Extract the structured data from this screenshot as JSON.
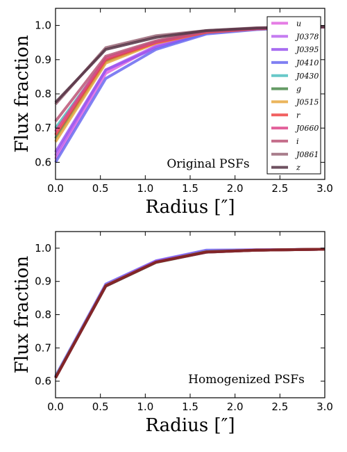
{
  "chart_data": [
    {
      "type": "line",
      "annotation": "Original PSFs",
      "xlabel": "Radius [″]",
      "ylabel": "Flux fraction",
      "xlim": [
        0.0,
        3.0
      ],
      "ylim": [
        0.55,
        1.05
      ],
      "xticks": [
        "0.0",
        "0.5",
        "1.0",
        "1.5",
        "2.0",
        "2.5",
        "3.0"
      ],
      "yticks": [
        "0.6",
        "0.7",
        "0.8",
        "0.9",
        "1.0"
      ],
      "legend_position": "right",
      "x": [
        0.0,
        0.56,
        1.12,
        1.68,
        2.24,
        2.8,
        3.0
      ],
      "series": [
        {
          "name": "u",
          "color": "#e066e0",
          "values": [
            0.61,
            0.86,
            0.94,
            0.98,
            0.99,
            0.995,
            0.995
          ]
        },
        {
          "name": "J0378",
          "color": "#bb66ee",
          "values": [
            0.62,
            0.87,
            0.94,
            0.98,
            0.99,
            0.995,
            0.995
          ]
        },
        {
          "name": "J0395",
          "color": "#9955ee",
          "values": [
            0.63,
            0.87,
            0.935,
            0.978,
            0.99,
            0.995,
            0.995
          ]
        },
        {
          "name": "J0410",
          "color": "#6a6af0",
          "values": [
            0.6,
            0.845,
            0.93,
            0.975,
            0.988,
            0.994,
            0.995
          ]
        },
        {
          "name": "J0430",
          "color": "#4dbfbf",
          "values": [
            0.7,
            0.9,
            0.95,
            0.98,
            0.99,
            0.995,
            0.995
          ]
        },
        {
          "name": "g",
          "color": "#4a8a4a",
          "values": [
            0.67,
            0.895,
            0.95,
            0.98,
            0.99,
            0.995,
            0.995
          ]
        },
        {
          "name": "J0515",
          "color": "#e8a840",
          "values": [
            0.66,
            0.89,
            0.948,
            0.98,
            0.99,
            0.995,
            0.995
          ]
        },
        {
          "name": "r",
          "color": "#ee4444",
          "values": [
            0.68,
            0.9,
            0.95,
            0.98,
            0.99,
            0.995,
            0.995
          ]
        },
        {
          "name": "J0660",
          "color": "#dd4488",
          "values": [
            0.69,
            0.905,
            0.952,
            0.982,
            0.99,
            0.995,
            0.995
          ]
        },
        {
          "name": "i",
          "color": "#bb5577",
          "values": [
            0.72,
            0.91,
            0.955,
            0.983,
            0.992,
            0.995,
            0.995
          ]
        },
        {
          "name": "J0861",
          "color": "#996677",
          "values": [
            0.77,
            0.935,
            0.97,
            0.985,
            0.993,
            0.996,
            0.996
          ]
        },
        {
          "name": "z",
          "color": "#553344",
          "values": [
            0.775,
            0.93,
            0.965,
            0.985,
            0.992,
            0.996,
            0.996
          ]
        }
      ]
    },
    {
      "type": "line",
      "annotation": "Homogenized PSFs",
      "xlabel": "Radius [″]",
      "ylabel": "Flux fraction",
      "xlim": [
        0.0,
        3.0
      ],
      "ylim": [
        0.55,
        1.05
      ],
      "xticks": [
        "0.0",
        "0.5",
        "1.0",
        "1.5",
        "2.0",
        "2.5",
        "3.0"
      ],
      "yticks": [
        "0.6",
        "0.7",
        "0.8",
        "0.9",
        "1.0"
      ],
      "x": [
        0.0,
        0.56,
        1.12,
        1.68,
        2.24,
        2.8,
        3.0
      ],
      "series": [
        {
          "color": "#6a6af0",
          "values": [
            0.615,
            0.892,
            0.962,
            0.994,
            0.995,
            0.996,
            0.997
          ]
        },
        {
          "color": "#9955ee",
          "values": [
            0.613,
            0.89,
            0.961,
            0.992,
            0.995,
            0.996,
            0.997
          ]
        },
        {
          "color": "#4dbfbf",
          "values": [
            0.612,
            0.888,
            0.958,
            0.99,
            0.994,
            0.996,
            0.997
          ]
        },
        {
          "color": "#4a8a4a",
          "values": [
            0.611,
            0.886,
            0.957,
            0.988,
            0.994,
            0.996,
            0.997
          ]
        },
        {
          "color": "#ee4444",
          "values": [
            0.61,
            0.887,
            0.958,
            0.988,
            0.994,
            0.996,
            0.997
          ]
        },
        {
          "color": "#dd4488",
          "values": [
            0.61,
            0.887,
            0.958,
            0.988,
            0.994,
            0.996,
            0.997
          ]
        },
        {
          "color": "#553344",
          "values": [
            0.61,
            0.886,
            0.958,
            0.988,
            0.994,
            0.996,
            0.997
          ]
        },
        {
          "color": "#882222",
          "values": [
            0.61,
            0.887,
            0.958,
            0.989,
            0.994,
            0.996,
            0.997
          ]
        }
      ]
    }
  ]
}
